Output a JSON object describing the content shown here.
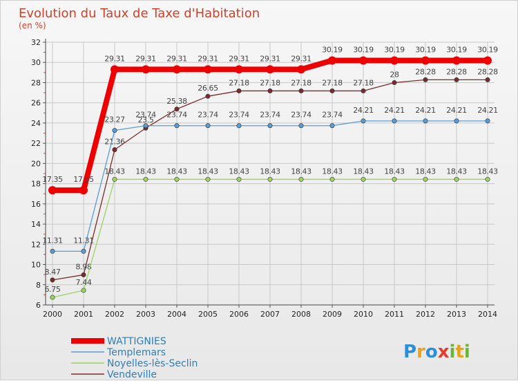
{
  "chart_data": {
    "type": "line",
    "title": "Evolution du Taux de Taxe d'Habitation",
    "subtitle": "(en %)",
    "ylim": [
      6,
      32
    ],
    "yticks": [
      6,
      8,
      10,
      12,
      14,
      16,
      18,
      20,
      22,
      24,
      26,
      28,
      30,
      32
    ],
    "categories": [
      "2000",
      "2001",
      "2002",
      "2003",
      "2004",
      "2005",
      "2006",
      "2007",
      "2008",
      "2009",
      "2010",
      "2011",
      "2012",
      "2013",
      "2014"
    ],
    "series": [
      {
        "name": "WATTIGNIES",
        "color": "#ee0000",
        "values": [
          17.35,
          17.35,
          29.31,
          29.31,
          29.31,
          29.31,
          29.31,
          29.31,
          29.31,
          30.19,
          30.19,
          30.19,
          30.19,
          30.19,
          30.19
        ],
        "labels": [
          "17.35",
          "17.35",
          "29.31",
          "29.31",
          "29.31",
          "29.31",
          "29.31",
          "29.31",
          "29.31",
          "30.19",
          "30.19",
          "30.19",
          "30.19",
          "30.19",
          "30.19"
        ]
      },
      {
        "name": "Templemars",
        "color": "#5b9bd5",
        "values": [
          11.31,
          11.31,
          23.27,
          23.74,
          23.74,
          23.74,
          23.74,
          23.74,
          23.74,
          23.74,
          24.21,
          24.21,
          24.21,
          24.21,
          24.21
        ],
        "labels": [
          "11.31",
          "11.31",
          "23.27",
          "23.74",
          "23.74",
          "23.74",
          "23.74",
          "23.74",
          "23.74",
          "23.74",
          "24.21",
          "24.21",
          "24.21",
          "24.21",
          "24.21"
        ]
      },
      {
        "name": "Noyelles-lès-Seclin",
        "color": "#99d462",
        "values": [
          6.75,
          7.44,
          18.43,
          18.43,
          18.43,
          18.43,
          18.43,
          18.43,
          18.43,
          18.43,
          18.43,
          18.43,
          18.43,
          18.43,
          18.43
        ],
        "labels": [
          "6.75",
          "7.44",
          "18.43",
          "18.43",
          "18.43",
          "18.43",
          "18.43",
          "18.43",
          "18.43",
          "18.43",
          "18.43",
          "18.43",
          "18.43",
          "18.43",
          "18.43"
        ]
      },
      {
        "name": "Vendeville",
        "color": "#7b2b2b",
        "values": [
          8.47,
          8.98,
          21.36,
          23.5,
          25.38,
          26.65,
          27.18,
          27.18,
          27.18,
          27.18,
          27.18,
          28,
          28.28,
          28.28,
          28.28
        ],
        "labels": [
          "8.47",
          "8.98",
          "21.36",
          "23.5",
          "25.38",
          "26.65",
          "27.18",
          "27.18",
          "27.18",
          "27.18",
          "27.18",
          "28",
          "28.28",
          "28.28",
          "28.28"
        ]
      }
    ]
  },
  "brand": {
    "letters": [
      "P",
      "r",
      "o",
      "x",
      "i",
      "t",
      "i"
    ],
    "colors": [
      "#2a8fd6",
      "#e9a21c",
      "#2a8fd6",
      "#e53b2c",
      "#6cb33e",
      "#e9a21c",
      "#6cb33e"
    ]
  }
}
